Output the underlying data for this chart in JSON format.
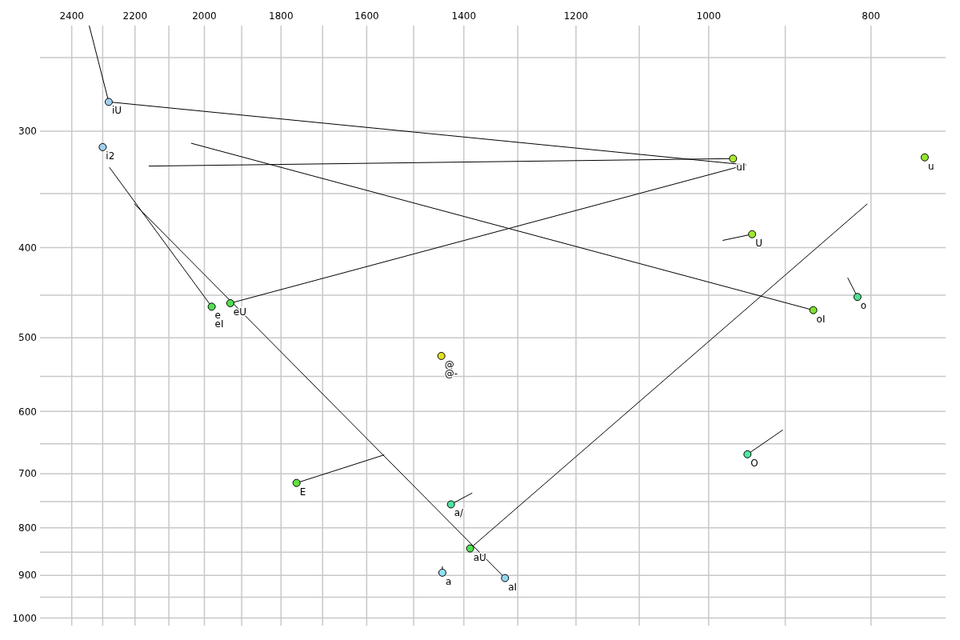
{
  "chart_data": {
    "type": "scatter",
    "log": "xy",
    "grid": true,
    "marker": "circle",
    "line_style": "solid",
    "xlim": [
      2507,
      722
    ],
    "ylim": [
      1019,
      231
    ],
    "xticks": [
      2400,
      {
        "value": 2300,
        "label": null
      },
      2200,
      {
        "value": 2100,
        "label": null
      },
      2000,
      {
        "value": 1900,
        "label": null
      },
      1800,
      {
        "value": 1700,
        "label": null
      },
      1600,
      {
        "value": 1500,
        "label": null
      },
      1400,
      {
        "value": 1300,
        "label": null
      },
      1200,
      {
        "value": 1100,
        "label": null
      },
      1000,
      {
        "value": 900,
        "label": null
      },
      800
    ],
    "yticks": [
      {
        "value": 250,
        "label": null
      },
      300,
      {
        "value": 350,
        "label": null
      },
      400,
      {
        "value": 450,
        "label": null
      },
      500,
      {
        "value": 550,
        "label": null
      },
      600,
      {
        "value": 650,
        "label": null
      },
      700,
      {
        "value": 750,
        "label": null
      },
      800,
      {
        "value": 850,
        "label": null
      },
      900,
      {
        "value": 950,
        "label": null
      },
      1000
    ],
    "series": [
      {
        "type": "line",
        "marker": "none",
        "color": "#000000",
        "x": [
          2343,
          2281
        ],
        "values": [
          231,
          279
        ]
      },
      {
        "type": "line",
        "marker": "none",
        "color": "#000000",
        "x": [
          2281,
          950
        ],
        "values": [
          279,
          326
        ]
      },
      {
        "type": "line",
        "marker": "none",
        "color": "#000000",
        "x": [
          967,
          2159
        ],
        "values": [
          321,
          327
        ]
      },
      {
        "type": "line",
        "marker": "none",
        "color": "#000000",
        "x": [
          2037,
          866
        ],
        "values": [
          309,
          467
        ]
      },
      {
        "type": "line",
        "marker": "none",
        "color": "#000000",
        "x": [
          2279,
          1980
        ],
        "values": [
          328,
          463
        ]
      },
      {
        "type": "line",
        "marker": "none",
        "color": "#000000",
        "x": [
          2202,
          1323
        ],
        "values": [
          359,
          906
        ]
      },
      {
        "type": "line",
        "marker": "none",
        "color": "#000000",
        "x": [
          1930,
          950
        ],
        "values": [
          459,
          326
        ]
      },
      {
        "type": "line",
        "marker": "none",
        "color": "#000000",
        "x": [
          804,
          1388
        ],
        "values": [
          359,
          842
        ]
      },
      {
        "type": "line",
        "marker": "none",
        "color": "#000000",
        "x": [
          942,
          981
        ],
        "values": [
          387,
          393
        ]
      },
      {
        "type": "line",
        "marker": "none",
        "color": "#000000",
        "x": [
          815,
          826
        ],
        "values": [
          452,
          431
        ]
      },
      {
        "type": "line",
        "marker": "none",
        "color": "#000000",
        "x": [
          1762,
          1562
        ],
        "values": [
          716,
          668
        ]
      },
      {
        "type": "line",
        "marker": "none",
        "color": "#000000",
        "x": [
          948,
          903
        ],
        "values": [
          667,
          628
        ]
      },
      {
        "type": "line",
        "marker": "none",
        "color": "#000000",
        "x": [
          1425,
          1384
        ],
        "values": [
          755,
          734
        ]
      },
      {
        "type": "line",
        "marker": "none",
        "color": "#000000",
        "x": [
          1442,
          1442
        ],
        "values": [
          894,
          880
        ]
      },
      {
        "x": [
          2281,
          2300,
          967,
          743,
          942,
          866,
          815,
          1980,
          1930,
          1444,
          1762,
          948,
          1425,
          1388,
          1442,
          1323
        ],
        "values": [
          279,
          312,
          321,
          320,
          387,
          467,
          452,
          463,
          459,
          523,
          716,
          667,
          755,
          842,
          894,
          906
        ],
        "colors": [
          "#a0d0f0",
          "#a0d0f0",
          "#a8e830",
          "#90e830",
          "#a0e830",
          "#80e030",
          "#50e090",
          "#50e050",
          "#50e050",
          "#e0e020",
          "#60e040",
          "#50e8a0",
          "#50e0a0",
          "#50e050",
          "#90e0f0",
          "#90d8f0"
        ]
      }
    ],
    "annotations": [
      {
        "text": "iU",
        "x": 2281,
        "y": 279
      },
      {
        "text": "i2",
        "x": 2300,
        "y": 312
      },
      {
        "text": "uI",
        "x": 967,
        "y": 321
      },
      {
        "text": "u",
        "x": 743,
        "y": 320
      },
      {
        "text": "U",
        "x": 942,
        "y": 387
      },
      {
        "text": "oI",
        "x": 866,
        "y": 467
      },
      {
        "text": "o",
        "x": 815,
        "y": 452
      },
      {
        "text": "e",
        "x": 1980,
        "y": 463
      },
      {
        "text": "eI",
        "x": 1980,
        "y": 463
      },
      {
        "text": "eU",
        "x": 1930,
        "y": 459
      },
      {
        "text": "@",
        "x": 1444,
        "y": 523
      },
      {
        "text": "@-",
        "x": 1444,
        "y": 523
      },
      {
        "text": "E",
        "x": 1762,
        "y": 716
      },
      {
        "text": "O",
        "x": 948,
        "y": 667
      },
      {
        "text": "a/",
        "x": 1425,
        "y": 755
      },
      {
        "text": "aU",
        "x": 1388,
        "y": 842
      },
      {
        "text": "a",
        "x": 1442,
        "y": 894
      },
      {
        "text": "aI",
        "x": 1323,
        "y": 906
      }
    ]
  }
}
